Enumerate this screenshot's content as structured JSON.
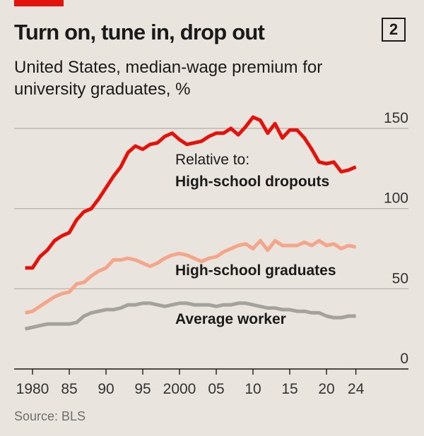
{
  "header": {
    "title": "Turn on, tune in, drop out",
    "chart_number": "2",
    "subtitle": "United States, median-wage premium for university graduates, %"
  },
  "footer": {
    "source": "Source: BLS"
  },
  "chart_data": {
    "type": "line",
    "title": "Turn on, tune in, drop out",
    "subtitle": "United States, median-wage premium for university graduates, %",
    "xlabel": "",
    "ylabel": "",
    "xlim": [
      1979,
      2025
    ],
    "ylim": [
      0,
      150
    ],
    "grid": true,
    "x_ticks": [
      1980,
      1985,
      1990,
      1995,
      2000,
      2005,
      2010,
      2015,
      2020,
      2024
    ],
    "x_tick_labels": [
      "1980",
      "85",
      "90",
      "95",
      "2000",
      "05",
      "10",
      "15",
      "20",
      "24"
    ],
    "y_ticks": [
      0,
      50,
      100,
      150
    ],
    "y_tick_labels": [
      "0",
      "50",
      "100",
      "150"
    ],
    "annotation": "Relative to:",
    "series": [
      {
        "name": "High-school dropouts",
        "color": "#e3120b",
        "x": [
          1979,
          1980,
          1981,
          1982,
          1983,
          1984,
          1985,
          1986,
          1987,
          1988,
          1989,
          1990,
          1991,
          1992,
          1993,
          1994,
          1995,
          1996,
          1997,
          1998,
          1999,
          2000,
          2001,
          2002,
          2003,
          2004,
          2005,
          2006,
          2007,
          2008,
          2009,
          2010,
          2011,
          2012,
          2013,
          2014,
          2015,
          2016,
          2017,
          2018,
          2019,
          2020,
          2021,
          2022,
          2023,
          2024
        ],
        "values": [
          63,
          63,
          70,
          74,
          80,
          83,
          85,
          93,
          98,
          100,
          106,
          113,
          120,
          126,
          135,
          139,
          137,
          140,
          141,
          145,
          147,
          143,
          140,
          141,
          142,
          145,
          147,
          147,
          150,
          146,
          151,
          157,
          155,
          147,
          153,
          144,
          149,
          149,
          144,
          137,
          129,
          128,
          129,
          123,
          124,
          126
        ]
      },
      {
        "name": "High-school graduates",
        "color": "#f4a58a",
        "x": [
          1979,
          1980,
          1981,
          1982,
          1983,
          1984,
          1985,
          1986,
          1987,
          1988,
          1989,
          1990,
          1991,
          1992,
          1993,
          1994,
          1995,
          1996,
          1997,
          1998,
          1999,
          2000,
          2001,
          2002,
          2003,
          2004,
          2005,
          2006,
          2007,
          2008,
          2009,
          2010,
          2011,
          2012,
          2013,
          2014,
          2015,
          2016,
          2017,
          2018,
          2019,
          2020,
          2021,
          2022,
          2023,
          2024
        ],
        "values": [
          35,
          36,
          39,
          42,
          45,
          47,
          48,
          53,
          54,
          58,
          61,
          63,
          68,
          68,
          69,
          68,
          66,
          64,
          66,
          69,
          71,
          72,
          71,
          69,
          67,
          69,
          70,
          73,
          75,
          77,
          78,
          75,
          80,
          74,
          80,
          77,
          77,
          77,
          79,
          77,
          80,
          77,
          78,
          75,
          77,
          76
        ]
      },
      {
        "name": "Average worker",
        "color": "#a3a39b",
        "x": [
          1979,
          1980,
          1981,
          1982,
          1983,
          1984,
          1985,
          1986,
          1987,
          1988,
          1989,
          1990,
          1991,
          1992,
          1993,
          1994,
          1995,
          1996,
          1997,
          1998,
          1999,
          2000,
          2001,
          2002,
          2003,
          2004,
          2005,
          2006,
          2007,
          2008,
          2009,
          2010,
          2011,
          2012,
          2013,
          2014,
          2015,
          2016,
          2017,
          2018,
          2019,
          2020,
          2021,
          2022,
          2023,
          2024
        ],
        "values": [
          25,
          26,
          27,
          28,
          28,
          28,
          28,
          29,
          33,
          35,
          36,
          37,
          37,
          38,
          40,
          40,
          41,
          41,
          40,
          39,
          40,
          41,
          41,
          40,
          40,
          40,
          39,
          40,
          40,
          41,
          41,
          40,
          39,
          38,
          38,
          37,
          37,
          36,
          36,
          35,
          35,
          33,
          32,
          32,
          33,
          33
        ]
      }
    ]
  }
}
